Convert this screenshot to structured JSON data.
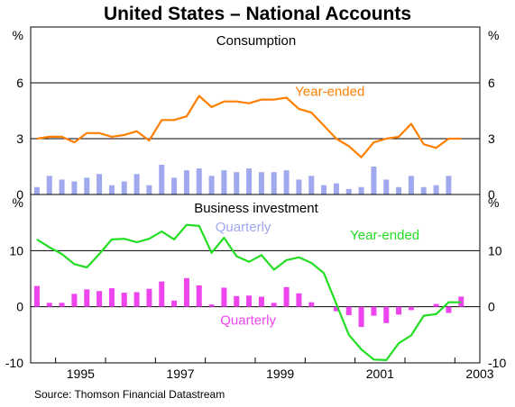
{
  "title": "United States – National Accounts",
  "source": "Source: Thomson Financial Datastream",
  "colors": {
    "consumption_year_ended": "#ff7f00",
    "consumption_quarterly": "#a0a8ee",
    "investment_year_ended": "#22dd22",
    "investment_quarterly": "#ee44ee",
    "gridline": "#000000"
  },
  "x_axis": {
    "tick_labels": [
      "1995",
      "1997",
      "1999",
      "2001",
      "2003"
    ],
    "tick_positions": [
      1995,
      1997,
      1999,
      2001,
      2003
    ],
    "range": [
      1994.5,
      2003.5
    ]
  },
  "chart_data": [
    {
      "type": "bar",
      "title": "Consumption",
      "ylabel": "%",
      "ylim": [
        0,
        9
      ],
      "yticks": [
        0,
        3,
        6
      ],
      "annotations": {
        "year_ended": "Year-ended",
        "quarterly": "Quarterly"
      },
      "x": [
        1994.625,
        1994.875,
        1995.125,
        1995.375,
        1995.625,
        1995.875,
        1996.125,
        1996.375,
        1996.625,
        1996.875,
        1997.125,
        1997.375,
        1997.625,
        1997.875,
        1998.125,
        1998.375,
        1998.625,
        1998.875,
        1999.125,
        1999.375,
        1999.625,
        1999.875,
        2000.125,
        2000.375,
        2000.625,
        2000.875,
        2001.125,
        2001.375,
        2001.625,
        2001.875,
        2002.125,
        2002.375,
        2002.625,
        2002.875,
        2003.125
      ],
      "series": [
        {
          "name": "Year-ended",
          "render": "line",
          "values": [
            3.0,
            3.1,
            3.1,
            2.8,
            3.3,
            3.3,
            3.1,
            3.2,
            3.4,
            2.9,
            4.0,
            4.0,
            4.2,
            5.3,
            4.7,
            5.0,
            5.0,
            4.9,
            5.1,
            5.1,
            5.2,
            4.6,
            4.4,
            3.7,
            3.0,
            2.6,
            2.0,
            2.8,
            3.0,
            3.1,
            3.8,
            2.7,
            2.5,
            3.0,
            3.0
          ]
        },
        {
          "name": "Quarterly",
          "render": "bar",
          "values": [
            0.4,
            1.0,
            0.8,
            0.7,
            0.9,
            1.1,
            0.5,
            0.7,
            1.1,
            0.5,
            1.6,
            0.9,
            1.3,
            1.4,
            1.0,
            1.3,
            1.2,
            1.4,
            1.2,
            1.2,
            1.3,
            0.8,
            1.0,
            0.5,
            0.6,
            0.3,
            0.4,
            1.5,
            0.8,
            0.4,
            1.0,
            0.4,
            0.5,
            1.0,
            0.0
          ]
        }
      ]
    },
    {
      "type": "bar",
      "title": "Business investment",
      "ylabel": "%",
      "ylim": [
        -10,
        20
      ],
      "yticks": [
        -10,
        0,
        10
      ],
      "annotations": {
        "year_ended": "Year-ended",
        "quarterly": "Quarterly"
      },
      "x": [
        1994.625,
        1994.875,
        1995.125,
        1995.375,
        1995.625,
        1995.875,
        1996.125,
        1996.375,
        1996.625,
        1996.875,
        1997.125,
        1997.375,
        1997.625,
        1997.875,
        1998.125,
        1998.375,
        1998.625,
        1998.875,
        1999.125,
        1999.375,
        1999.625,
        1999.875,
        2000.125,
        2000.375,
        2000.625,
        2000.875,
        2001.125,
        2001.375,
        2001.625,
        2001.875,
        2002.125,
        2002.375,
        2002.625,
        2002.875,
        2003.125
      ],
      "series": [
        {
          "name": "Year-ended",
          "render": "line",
          "values": [
            12.0,
            10.6,
            9.4,
            7.6,
            7.0,
            9.4,
            12.0,
            12.1,
            11.5,
            12.1,
            13.4,
            12.0,
            14.6,
            14.4,
            9.6,
            12.3,
            9.0,
            8.0,
            9.2,
            6.6,
            8.3,
            8.8,
            7.8,
            6.0,
            0.5,
            -5.0,
            -7.6,
            -9.4,
            -9.5,
            -6.5,
            -5.1,
            -1.6,
            -1.3,
            0.8,
            0.8
          ]
        },
        {
          "name": "Quarterly",
          "render": "bar",
          "values": [
            3.7,
            0.7,
            0.7,
            2.3,
            3.1,
            2.8,
            3.3,
            2.5,
            2.6,
            3.2,
            4.5,
            1.1,
            5.1,
            3.8,
            0.4,
            3.4,
            1.9,
            2.0,
            1.8,
            0.7,
            3.5,
            2.4,
            0.8,
            0.0,
            -0.8,
            -1.5,
            -3.6,
            -1.6,
            -2.9,
            -1.4,
            -0.6,
            0.0,
            0.5,
            -1.1,
            1.8
          ]
        }
      ]
    }
  ]
}
